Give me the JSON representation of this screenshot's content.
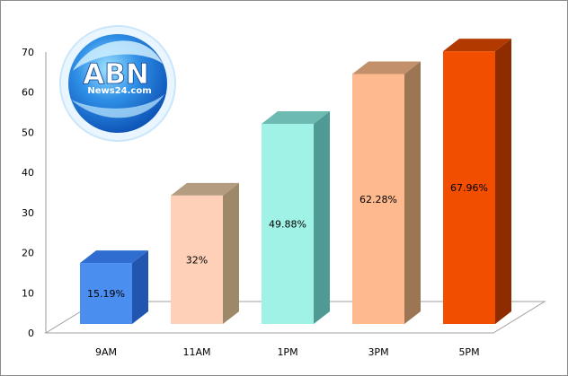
{
  "logo": {
    "text": "ABN",
    "subtext": "News24.com"
  },
  "chart_data": {
    "type": "bar",
    "categories": [
      "9AM",
      "11AM",
      "1PM",
      "3PM",
      "5PM"
    ],
    "values": [
      15.19,
      32,
      49.88,
      62.28,
      67.96
    ],
    "data_labels": [
      "15.19%",
      "32%",
      "49.88%",
      "62.28%",
      "67.96%"
    ],
    "title": "",
    "xlabel": "",
    "ylabel": "",
    "ylim": [
      0,
      70
    ],
    "yticks": [
      "0",
      "10",
      "20",
      "30",
      "40",
      "50",
      "60",
      "70"
    ],
    "grid": false,
    "legend": "none",
    "style": "3d-column",
    "colors": [
      {
        "front": "#4a8ef0",
        "top": "#2f6ed0",
        "side": "#2155b0"
      },
      {
        "front": "#ffd0b8",
        "top": "#b49c80",
        "side": "#9d8868"
      },
      {
        "front": "#a0f2e6",
        "top": "#6cbab2",
        "side": "#509a96"
      },
      {
        "front": "#ffb98e",
        "top": "#c2906a",
        "side": "#9c7654"
      },
      {
        "front": "#f24e00",
        "top": "#b23a00",
        "side": "#8e2c00"
      }
    ]
  }
}
